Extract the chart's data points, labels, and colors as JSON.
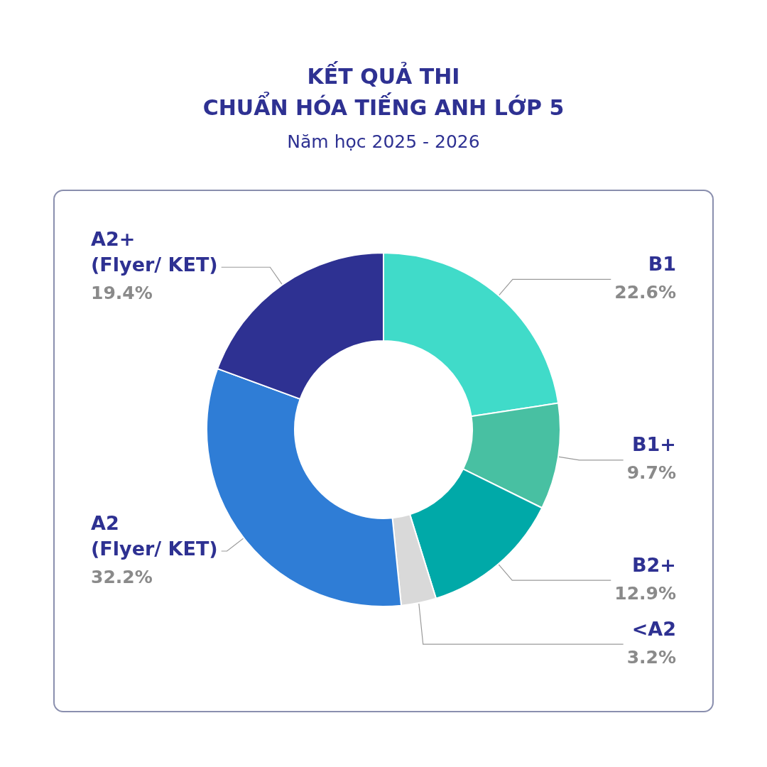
{
  "chart_data": {
    "type": "donut",
    "title": "KẾT QUẢ THI\nCHUẨN HÓA TIẾNG ANH LỚP 5",
    "subtitle": "Năm học 2025 - 2026",
    "categories": [
      "B1",
      "B1+",
      "B2+",
      "<A2",
      "A2\n(Flyer/ KET)",
      "A2+\n(Flyer/ KET)"
    ],
    "values": [
      22.6,
      9.7,
      12.9,
      3.2,
      32.2,
      19.4
    ],
    "colors": [
      "#40dbc9",
      "#48c0a2",
      "#00a9a8",
      "#d9d9d9",
      "#2f7dd6",
      "#2e3192"
    ],
    "value_labels": [
      "22.6%",
      "9.7%",
      "12.9%",
      "3.2%",
      "32.2%",
      "19.4%"
    ],
    "legend": false
  }
}
